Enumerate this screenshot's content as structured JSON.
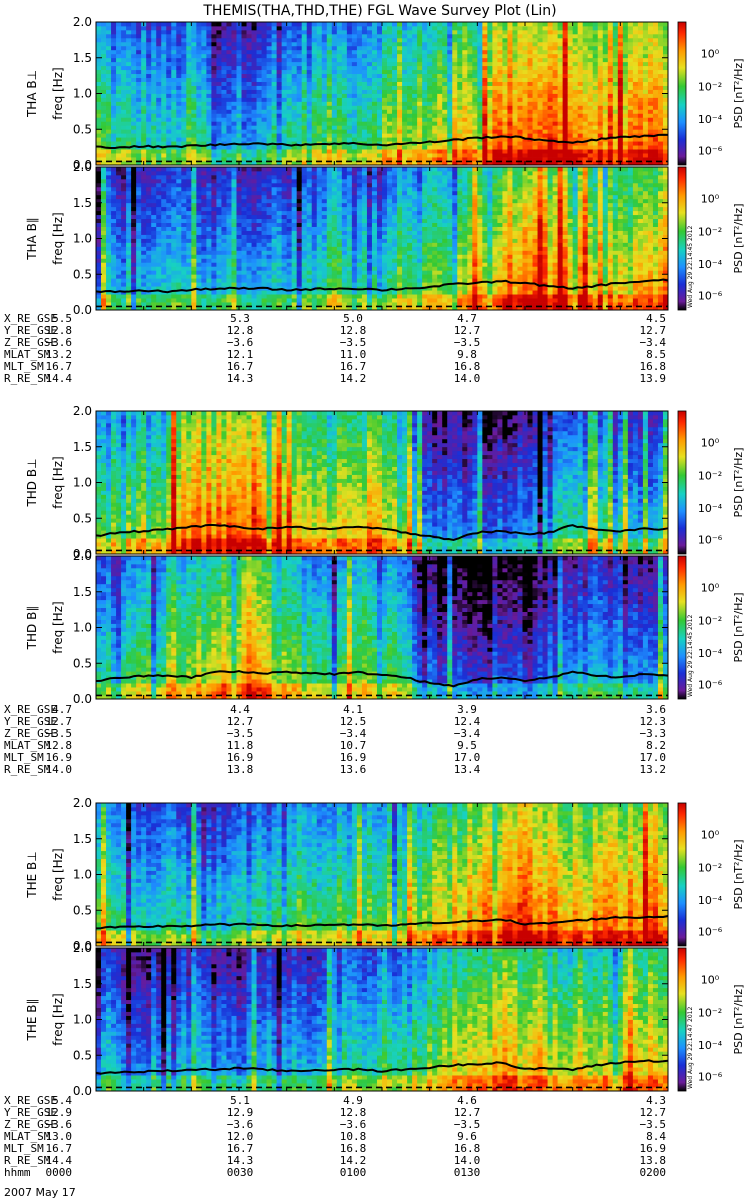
{
  "chart_data": {
    "type": "heatmap",
    "title": "THEMIS(THA,THD,THE) FGL Wave Survey Plot (Lin)",
    "ylabel": "freq [Hz]",
    "ylim": [
      0,
      2.0
    ],
    "yticks": [
      "0.0",
      "0.5",
      "1.0",
      "1.5",
      "2.0"
    ],
    "colorbar": {
      "label": "PSD [nT²/Hz]",
      "ticks": [
        "10⁰",
        "10⁻²",
        "10⁻⁴",
        "10⁻⁶"
      ],
      "scale": "log"
    },
    "stamps": [
      "Wed Aug 29 22:14:45 2012",
      "Wed Aug 29 22:14:45 2012",
      "Wed Aug 29 22:14:47 2012"
    ],
    "groups": [
      {
        "probe": "THA",
        "panels": [
          {
            "ylabel": "THA B⊥",
            "activity": [
              0.6,
              0.5,
              0.5,
              0.45,
              0.55,
              0.4,
              0.4,
              0.45,
              0.5,
              0.55,
              0.6,
              0.55,
              0.65,
              0.6,
              0.7,
              0.75,
              0.8,
              0.9,
              0.95,
              0.95,
              0.9,
              0.85,
              0.8,
              0.85,
              0.9
            ],
            "line": [
              0.25,
              0.25,
              0.26,
              0.25,
              0.27,
              0.28,
              0.3,
              0.3,
              0.28,
              0.29,
              0.3,
              0.3,
              0.28,
              0.3,
              0.32,
              0.35,
              0.38,
              0.4,
              0.38,
              0.33,
              0.32,
              0.35,
              0.4,
              0.4,
              0.42
            ]
          },
          {
            "ylabel": "THA B∥",
            "activity": [
              0.5,
              0.4,
              0.45,
              0.4,
              0.45,
              0.35,
              0.35,
              0.4,
              0.45,
              0.5,
              0.55,
              0.45,
              0.55,
              0.5,
              0.6,
              0.65,
              0.75,
              0.85,
              0.9,
              0.9,
              0.85,
              0.75,
              0.75,
              0.8,
              0.85
            ],
            "line": [
              0.25,
              0.26,
              0.27,
              0.26,
              0.28,
              0.3,
              0.3,
              0.3,
              0.28,
              0.29,
              0.3,
              0.3,
              0.28,
              0.3,
              0.32,
              0.36,
              0.38,
              0.4,
              0.38,
              0.33,
              0.3,
              0.34,
              0.38,
              0.4,
              0.42
            ]
          }
        ],
        "orbit": {
          "labels": [
            "X_RE_GSE",
            "Y_RE_GSE",
            "Z_RE_GSE",
            "MLAT_SM",
            "MLT_SM",
            "R_RE_SM"
          ],
          "values": [
            [
              "5.5",
              "5.3",
              "5.0",
              "4.7",
              "4.5"
            ],
            [
              "12.8",
              "12.8",
              "12.8",
              "12.7",
              "12.7"
            ],
            [
              "−3.6",
              "−3.6",
              "−3.5",
              "−3.5",
              "−3.4"
            ],
            [
              "13.2",
              "12.1",
              "11.0",
              "9.8",
              "8.5"
            ],
            [
              "16.7",
              "16.7",
              "16.7",
              "16.8",
              "16.8"
            ],
            [
              "14.4",
              "14.3",
              "14.2",
              "14.0",
              "13.9"
            ]
          ]
        }
      },
      {
        "probe": "THD",
        "panels": [
          {
            "ylabel": "THD B⊥",
            "activity": [
              0.55,
              0.6,
              0.7,
              0.8,
              0.85,
              0.9,
              0.95,
              0.9,
              0.8,
              0.75,
              0.7,
              0.75,
              0.8,
              0.6,
              0.35,
              0.3,
              0.3,
              0.35,
              0.3,
              0.4,
              0.55,
              0.5,
              0.45,
              0.45,
              0.5
            ],
            "line": [
              0.25,
              0.3,
              0.32,
              0.35,
              0.38,
              0.4,
              0.38,
              0.35,
              0.38,
              0.36,
              0.35,
              0.38,
              0.35,
              0.3,
              0.25,
              0.2,
              0.3,
              0.32,
              0.28,
              0.3,
              0.4,
              0.35,
              0.32,
              0.35,
              0.35
            ]
          },
          {
            "ylabel": "THD B∥",
            "activity": [
              0.45,
              0.5,
              0.55,
              0.65,
              0.7,
              0.75,
              0.8,
              0.75,
              0.65,
              0.6,
              0.55,
              0.6,
              0.6,
              0.45,
              0.25,
              0.2,
              0.2,
              0.25,
              0.2,
              0.3,
              0.4,
              0.4,
              0.35,
              0.35,
              0.4
            ],
            "line": [
              0.25,
              0.3,
              0.32,
              0.33,
              0.3,
              0.38,
              0.38,
              0.36,
              0.38,
              0.36,
              0.35,
              0.37,
              0.34,
              0.3,
              0.22,
              0.18,
              0.28,
              0.3,
              0.25,
              0.3,
              0.38,
              0.33,
              0.3,
              0.35,
              0.33
            ]
          }
        ],
        "orbit": {
          "labels": [
            "X_RE_GSE",
            "Y_RE_GSE",
            "Z_RE_GSE",
            "MLAT_SM",
            "MLT_SM",
            "R_RE_SM"
          ],
          "values": [
            [
              "4.7",
              "4.4",
              "4.1",
              "3.9",
              "3.6"
            ],
            [
              "12.7",
              "12.7",
              "12.5",
              "12.4",
              "12.3"
            ],
            [
              "−3.5",
              "−3.5",
              "−3.4",
              "−3.4",
              "−3.3"
            ],
            [
              "12.8",
              "11.8",
              "10.7",
              "9.5",
              "8.2"
            ],
            [
              "16.9",
              "16.9",
              "16.9",
              "17.0",
              "17.0"
            ],
            [
              "14.0",
              "13.8",
              "13.6",
              "13.4",
              "13.2"
            ]
          ]
        }
      },
      {
        "probe": "THE",
        "panels": [
          {
            "ylabel": "THE B⊥",
            "activity": [
              0.55,
              0.5,
              0.45,
              0.45,
              0.5,
              0.4,
              0.45,
              0.5,
              0.5,
              0.55,
              0.6,
              0.55,
              0.65,
              0.6,
              0.7,
              0.8,
              0.85,
              0.9,
              0.9,
              0.85,
              0.8,
              0.85,
              0.85,
              0.9,
              0.9
            ],
            "line": [
              0.25,
              0.26,
              0.27,
              0.28,
              0.28,
              0.3,
              0.3,
              0.3,
              0.28,
              0.29,
              0.3,
              0.3,
              0.28,
              0.3,
              0.32,
              0.33,
              0.35,
              0.38,
              0.3,
              0.32,
              0.35,
              0.38,
              0.4,
              0.4,
              0.42
            ]
          },
          {
            "ylabel": "THE B∥",
            "activity": [
              0.45,
              0.4,
              0.35,
              0.35,
              0.4,
              0.35,
              0.35,
              0.4,
              0.45,
              0.45,
              0.5,
              0.45,
              0.55,
              0.5,
              0.6,
              0.7,
              0.75,
              0.8,
              0.8,
              0.75,
              0.7,
              0.75,
              0.75,
              0.8,
              0.8
            ],
            "line": [
              0.25,
              0.26,
              0.27,
              0.28,
              0.3,
              0.3,
              0.32,
              0.3,
              0.28,
              0.29,
              0.3,
              0.3,
              0.28,
              0.3,
              0.33,
              0.36,
              0.38,
              0.4,
              0.3,
              0.32,
              0.3,
              0.36,
              0.4,
              0.42,
              0.42
            ]
          }
        ],
        "orbit": {
          "labels": [
            "X_RE_GSE",
            "Y_RE_GSE",
            "Z_RE_GSE",
            "MLAT_SM",
            "MLT_SM",
            "R_RE_SM",
            "hhmm"
          ],
          "values": [
            [
              "5.4",
              "5.1",
              "4.9",
              "4.6",
              "4.3"
            ],
            [
              "12.9",
              "12.9",
              "12.8",
              "12.7",
              "12.7"
            ],
            [
              "−3.6",
              "−3.6",
              "−3.6",
              "−3.5",
              "−3.5"
            ],
            [
              "13.0",
              "12.0",
              "10.8",
              "9.6",
              "8.4"
            ],
            [
              "16.7",
              "16.7",
              "16.8",
              "16.8",
              "16.9"
            ],
            [
              "14.4",
              "14.3",
              "14.2",
              "14.0",
              "13.8"
            ],
            [
              "0000",
              "0030",
              "0100",
              "0130",
              "0200"
            ]
          ]
        }
      }
    ],
    "date": "2007 May 17"
  }
}
